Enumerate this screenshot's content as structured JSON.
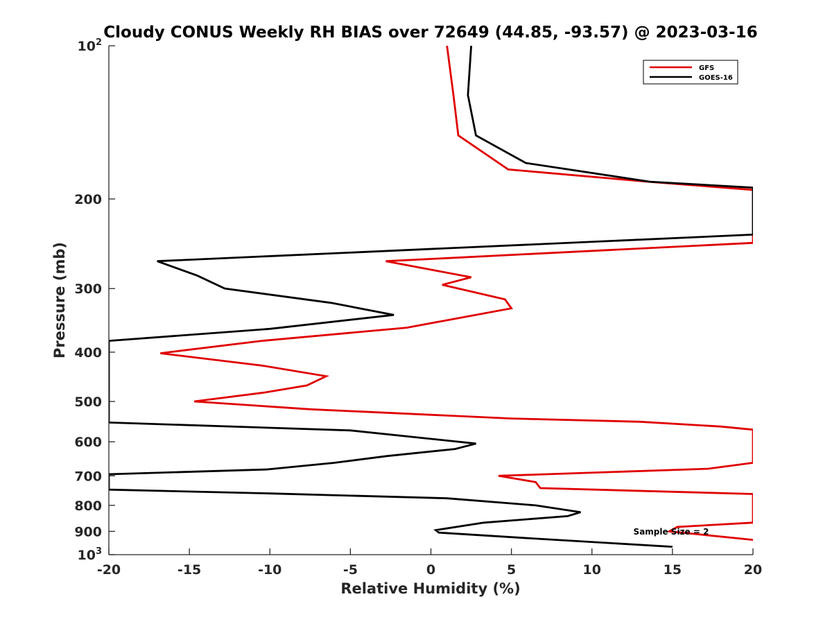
{
  "chart_data": {
    "type": "line",
    "title": "Cloudy CONUS Weekly RH BIAS over 72649 (44.85, -93.57) @ 2023-03-16",
    "xlabel": "Relative Humidity (%)",
    "ylabel": "Pressure (mb)",
    "xlim": [
      -20,
      20
    ],
    "ylim": [
      100,
      1000
    ],
    "y_scale": "log",
    "y_reversed": true,
    "grid": false,
    "legend_position": "top-right",
    "x_ticks": [
      "-20",
      "-15",
      "-10",
      "-5",
      "0",
      "5",
      "10",
      "15",
      "20"
    ],
    "y_ticks": [
      {
        "value": 100,
        "base": "10",
        "exp": "2"
      },
      {
        "value": 200,
        "label": "200"
      },
      {
        "value": 300,
        "label": "300"
      },
      {
        "value": 400,
        "label": "400"
      },
      {
        "value": 500,
        "label": "500"
      },
      {
        "value": 600,
        "label": "600"
      },
      {
        "value": 700,
        "label": "700"
      },
      {
        "value": 800,
        "label": "800"
      },
      {
        "value": 900,
        "label": "900"
      },
      {
        "value": 1000,
        "base": "10",
        "exp": "3"
      }
    ],
    "annotation": "Sample Size = 2",
    "series": [
      {
        "name": "GFS",
        "color": "#e00000",
        "points": [
          [
            1.0,
            100
          ],
          [
            1.4,
            125
          ],
          [
            1.7,
            150
          ],
          [
            4.8,
            175
          ],
          [
            13.5,
            185
          ],
          [
            20,
            192
          ],
          [
            20,
            244
          ],
          [
            -2.8,
            265
          ],
          [
            2.5,
            285
          ],
          [
            0.7,
            295
          ],
          [
            4.6,
            315
          ],
          [
            5.0,
            328
          ],
          [
            -1.5,
            358
          ],
          [
            -10.5,
            380
          ],
          [
            -16.8,
            402
          ],
          [
            -10.5,
            425
          ],
          [
            -6.5,
            446
          ],
          [
            -7.7,
            465
          ],
          [
            -10.3,
            480
          ],
          [
            -14.7,
            500
          ],
          [
            -7.5,
            518
          ],
          [
            5.0,
            540
          ],
          [
            13.0,
            548
          ],
          [
            18.0,
            560
          ],
          [
            20,
            568
          ],
          [
            20,
            660
          ],
          [
            17.2,
            678
          ],
          [
            4.2,
            700
          ],
          [
            6.5,
            720
          ],
          [
            6.8,
            740
          ],
          [
            20,
            760
          ],
          [
            20,
            865
          ],
          [
            15.3,
            882
          ],
          [
            14.8,
            900
          ],
          [
            20,
            935
          ]
        ]
      },
      {
        "name": "GOES-16",
        "color": "#000000",
        "points": [
          [
            2.5,
            100
          ],
          [
            2.3,
            125
          ],
          [
            2.8,
            150
          ],
          [
            5.9,
            170
          ],
          [
            13.6,
            185
          ],
          [
            20,
            190
          ],
          [
            20,
            235
          ],
          [
            -17.0,
            265
          ],
          [
            -14.5,
            283
          ],
          [
            -12.8,
            300
          ],
          [
            -6.2,
            320
          ],
          [
            -2.3,
            338
          ],
          [
            -10.0,
            360
          ],
          [
            -20,
            380
          ],
          [
            -20,
            550
          ],
          [
            -5.0,
            570
          ],
          [
            2.8,
            605
          ],
          [
            1.5,
            620
          ],
          [
            -2.7,
            640
          ],
          [
            -6.0,
            660
          ],
          [
            -10.2,
            680
          ],
          [
            -20,
            695
          ],
          [
            -20,
            745
          ],
          [
            -10.0,
            758
          ],
          [
            1.0,
            775
          ],
          [
            6.5,
            800
          ],
          [
            9.3,
            825
          ],
          [
            8.5,
            840
          ],
          [
            3.3,
            865
          ],
          [
            0.3,
            895
          ],
          [
            0.5,
            905
          ],
          [
            6.5,
            930
          ],
          [
            15.0,
            965
          ]
        ]
      }
    ]
  }
}
